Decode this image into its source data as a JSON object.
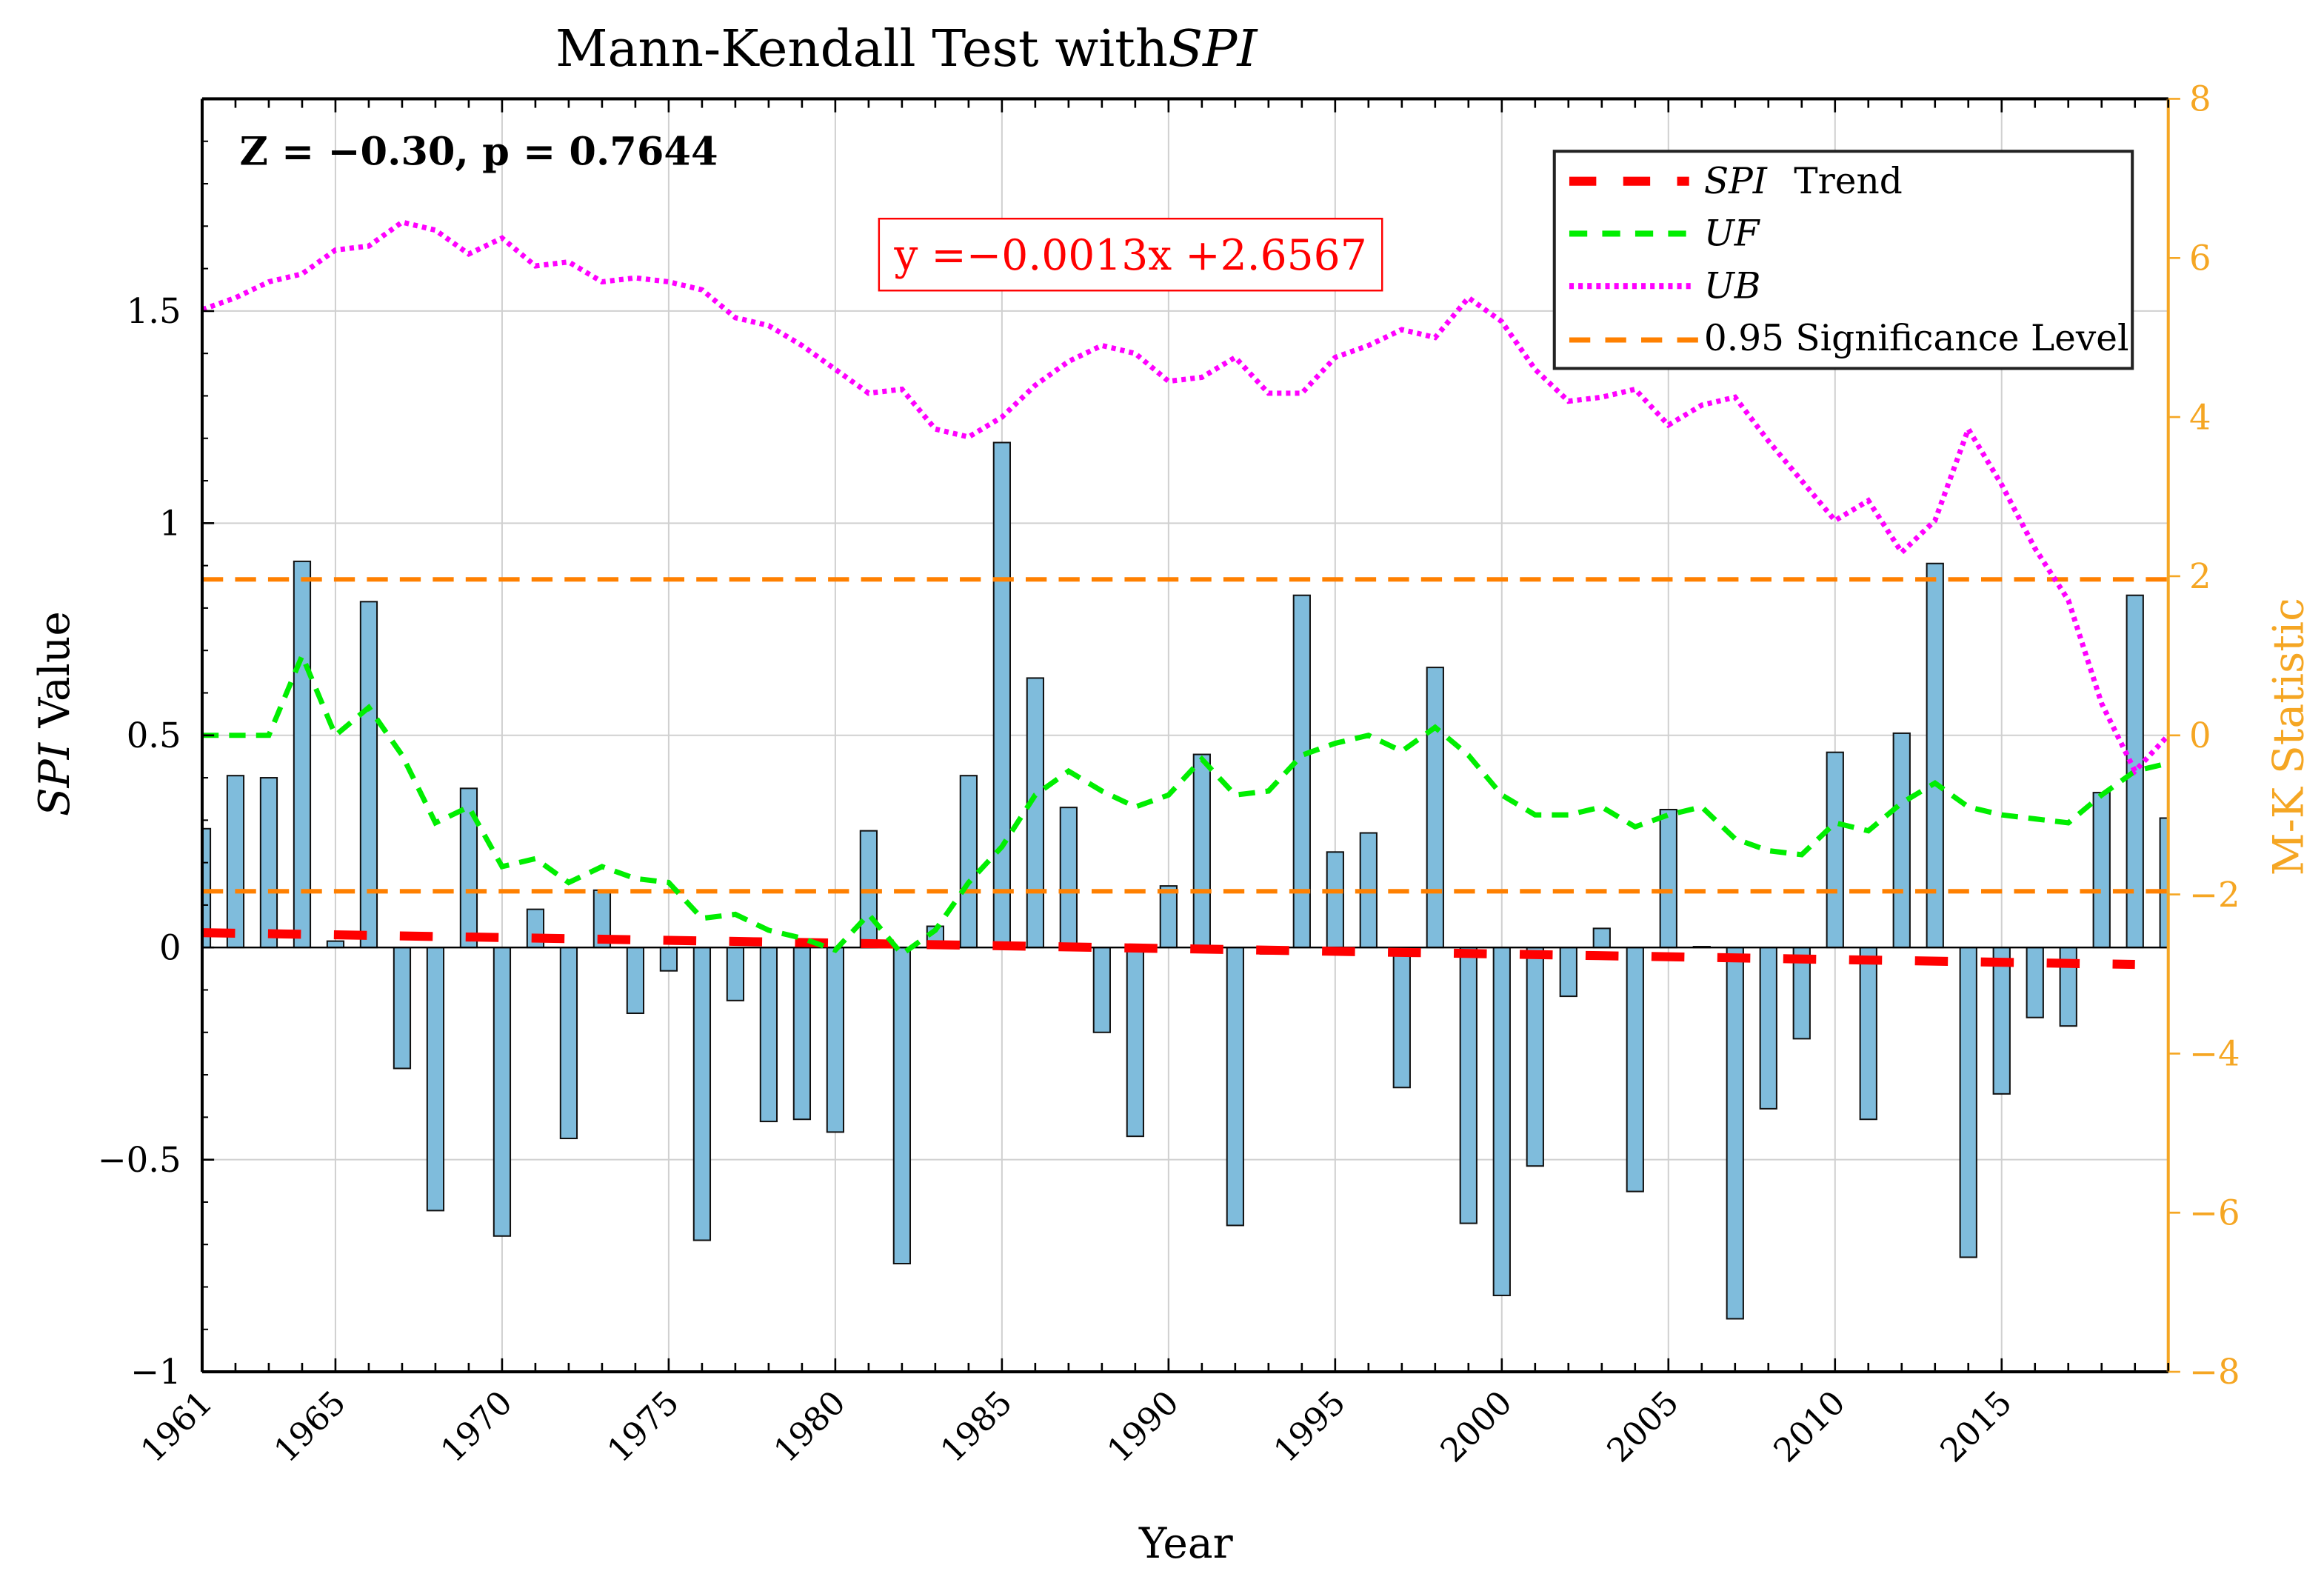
{
  "chart_data": {
    "type": "bar",
    "title": "Mann-Kendall Test with",
    "title_italic": "SPI",
    "xlabel": "Year",
    "ylabel_italic": "SPI",
    "ylabel": "Value",
    "y2label": "M-K Statistic",
    "xlim": [
      1961,
      2020
    ],
    "ylim": [
      -1,
      2
    ],
    "y2lim": [
      -8,
      8
    ],
    "xticks": [
      1961,
      1965,
      1970,
      1975,
      1980,
      1985,
      1990,
      1995,
      2000,
      2005,
      2010,
      2015
    ],
    "yticks": [
      -1,
      -0.5,
      0,
      0.5,
      1,
      1.5
    ],
    "ytick_labels": [
      "−1",
      "−0.5",
      "0",
      "0.5",
      "1",
      "1.5"
    ],
    "y2ticks": [
      -8,
      -6,
      -4,
      -2,
      0,
      2,
      4,
      6,
      8
    ],
    "y2tick_labels": [
      "−8",
      "−6",
      "−4",
      "−2",
      "0",
      "2",
      "4",
      "6",
      "8"
    ],
    "grid": true,
    "annotation_stats": "Z = −0.30, p = 0.7644",
    "equation": "y =−0.0013x +2.6567",
    "legend_position": "top-right",
    "legend": [
      {
        "italic": "SPI",
        "label": "Trend"
      },
      {
        "italic": "UF",
        "label": ""
      },
      {
        "italic": "UB",
        "label": ""
      },
      {
        "italic": "",
        "label": "0.95 Significance Level"
      }
    ],
    "colors": {
      "bars": "#7fbcdc",
      "trend": "#ff0000",
      "uf": "#00ee00",
      "ub": "#ff00ff",
      "significance": "#ff8000",
      "right_axis": "#f5a623"
    },
    "years": [
      1961,
      1962,
      1963,
      1964,
      1965,
      1966,
      1967,
      1968,
      1969,
      1970,
      1971,
      1972,
      1973,
      1974,
      1975,
      1976,
      1977,
      1978,
      1979,
      1980,
      1981,
      1982,
      1983,
      1984,
      1985,
      1986,
      1987,
      1988,
      1989,
      1990,
      1991,
      1992,
      1993,
      1994,
      1995,
      1996,
      1997,
      1998,
      1999,
      2000,
      2001,
      2002,
      2003,
      2004,
      2005,
      2006,
      2007,
      2008,
      2009,
      2010,
      2011,
      2012,
      2013,
      2014,
      2015,
      2016,
      2017,
      2018,
      2019,
      2020
    ],
    "spi": [
      0.28,
      0.405,
      0.4,
      0.91,
      0.015,
      0.815,
      -0.285,
      -0.62,
      0.375,
      -0.68,
      0.09,
      -0.45,
      0.135,
      -0.155,
      -0.055,
      -0.69,
      -0.125,
      -0.41,
      -0.405,
      -0.435,
      0.275,
      -0.745,
      0.05,
      0.405,
      1.19,
      0.635,
      0.33,
      -0.2,
      -0.445,
      0.145,
      0.455,
      -0.655,
      -0.015,
      0.83,
      0.225,
      0.27,
      -0.33,
      0.66,
      -0.65,
      -0.82,
      -0.515,
      -0.115,
      0.045,
      -0.575,
      0.325,
      0.002,
      -0.875,
      -0.38,
      -0.215,
      0.46,
      -0.405,
      0.505,
      0.905,
      -0.73,
      -0.345,
      -0.165,
      -0.185,
      0.365,
      0.83,
      0.305
    ],
    "uf": [
      0,
      0,
      0,
      1.0,
      0,
      0.35,
      -0.25,
      -1.1,
      -0.9,
      -1.65,
      -1.55,
      -1.85,
      -1.65,
      -1.8,
      -1.85,
      -2.3,
      -2.25,
      -2.45,
      -2.55,
      -2.7,
      -2.25,
      -2.75,
      -2.45,
      -1.85,
      -1.4,
      -0.75,
      -0.45,
      -0.7,
      -0.9,
      -0.75,
      -0.3,
      -0.75,
      -0.7,
      -0.25,
      -0.1,
      0,
      -0.2,
      0.1,
      -0.25,
      -0.75,
      -1.0,
      -1.0,
      -0.9,
      -1.15,
      -1.0,
      -0.9,
      -1.3,
      -1.45,
      -1.5,
      -1.1,
      -1.2,
      -0.85,
      -0.6,
      -0.9,
      -1.0,
      -1.05,
      -1.1,
      -0.75,
      -0.45,
      -0.35
    ],
    "ub": [
      5.35,
      5.5,
      5.7,
      5.8,
      6.1,
      6.15,
      6.45,
      6.35,
      6.05,
      6.25,
      5.9,
      5.95,
      5.7,
      5.75,
      5.7,
      5.6,
      5.25,
      5.15,
      4.9,
      4.6,
      4.3,
      4.35,
      3.85,
      3.75,
      4.0,
      4.4,
      4.7,
      4.9,
      4.8,
      4.45,
      4.5,
      4.75,
      4.3,
      4.3,
      4.75,
      4.9,
      5.1,
      5.0,
      5.5,
      5.2,
      4.6,
      4.2,
      4.25,
      4.35,
      3.9,
      4.15,
      4.25,
      3.7,
      3.2,
      2.7,
      2.95,
      2.3,
      2.7,
      3.85,
      3.15,
      2.35,
      1.7,
      0.4,
      -0.45,
      0
    ],
    "trend_endpoints": {
      "x": [
        1961,
        2019
      ],
      "y": [
        0.035,
        -0.04
      ]
    },
    "significance_levels": [
      1.96,
      -1.96
    ]
  }
}
